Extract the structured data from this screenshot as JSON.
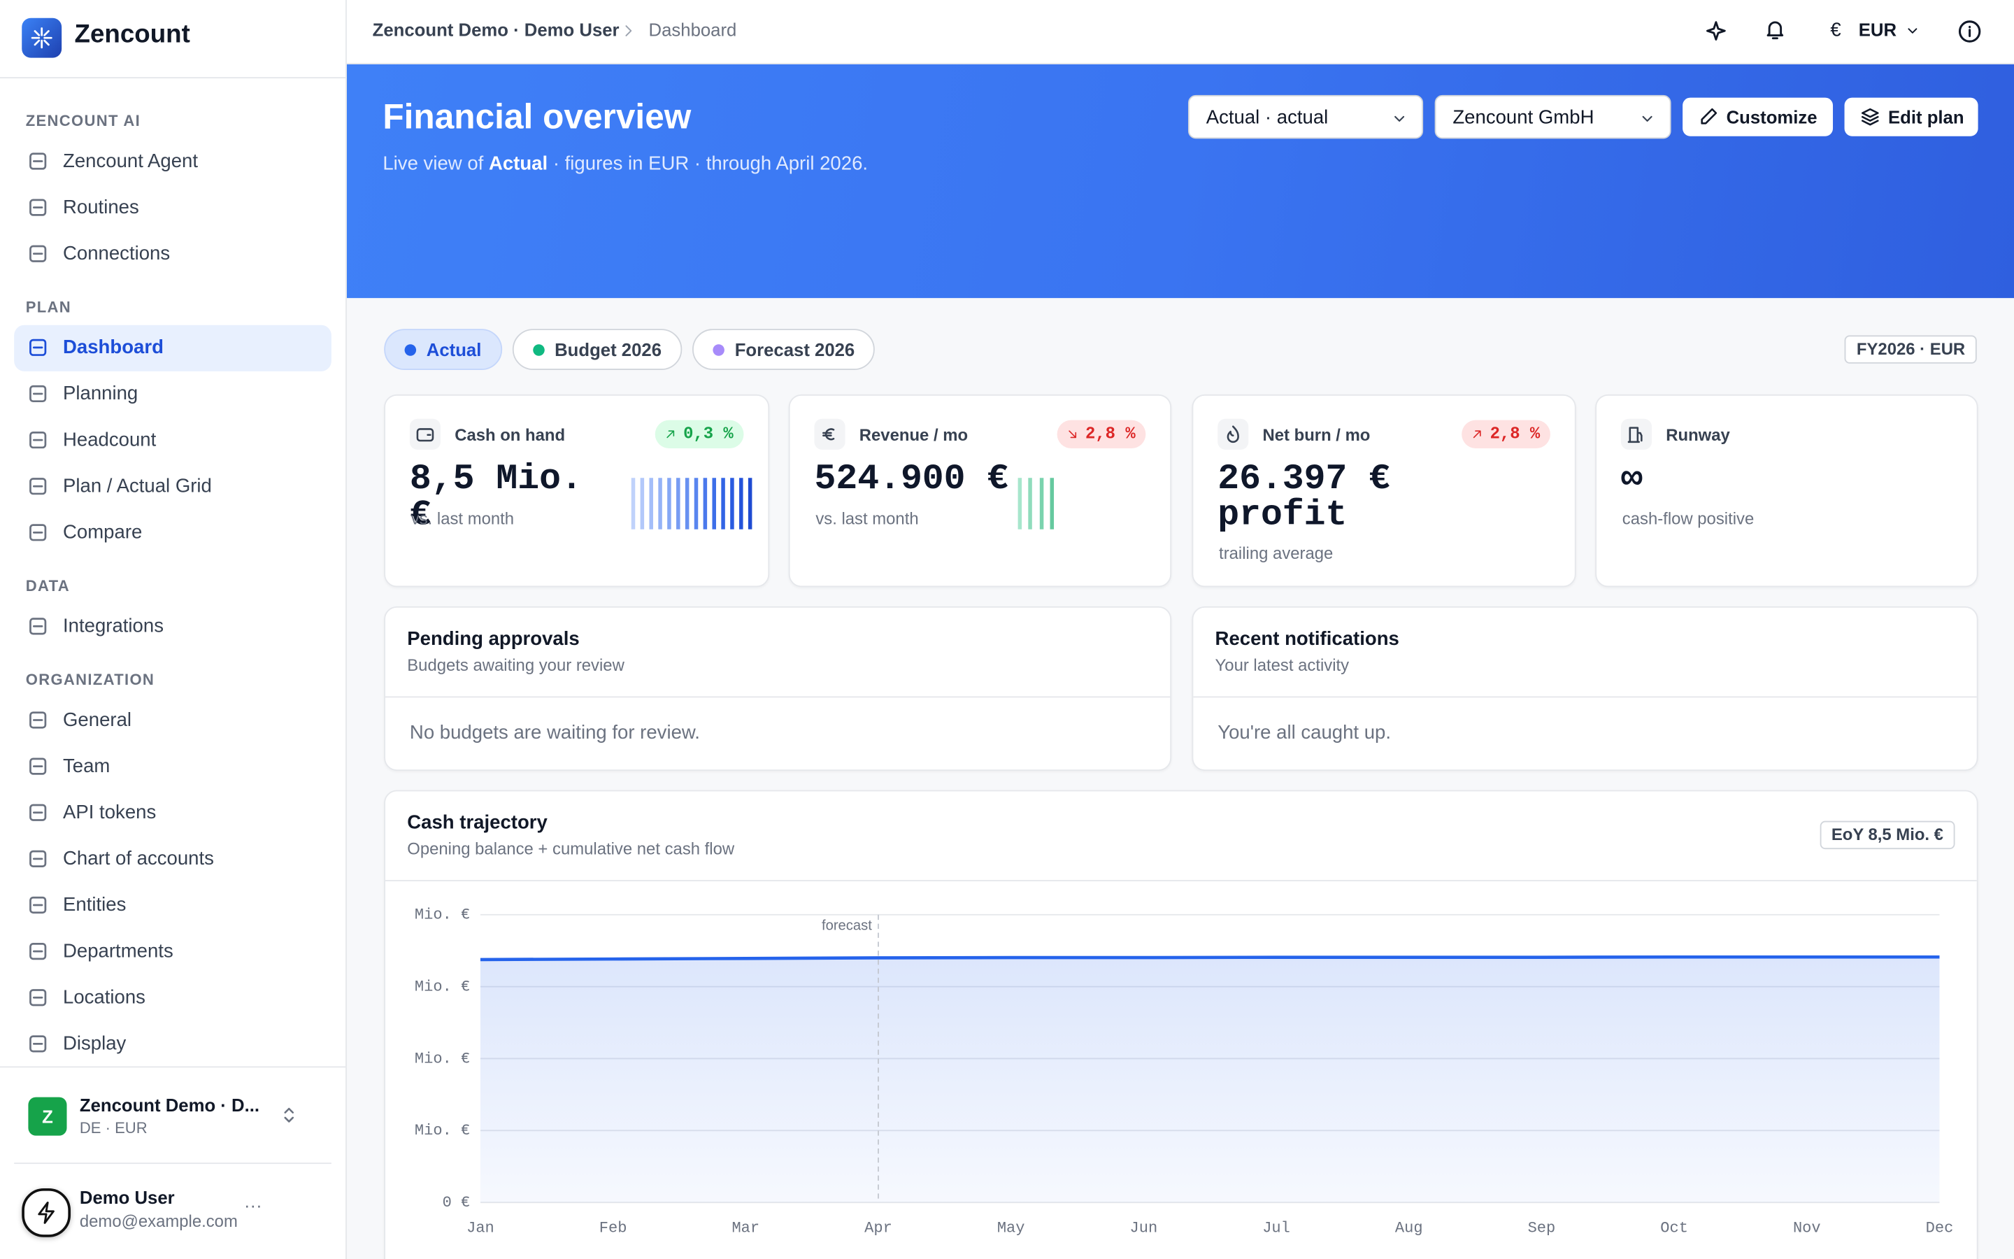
{
  "sidebar": {
    "brand": "Zencount",
    "active": "Dashboard",
    "sections": [
      {
        "label": "ZENCOUNT AI",
        "items": [
          "Zencount Agent",
          "Routines",
          "Connections"
        ]
      },
      {
        "label": "PLAN",
        "items": [
          "Dashboard",
          "Planning",
          "Headcount",
          "Plan / Actual Grid",
          "Compare"
        ]
      },
      {
        "label": "DATA",
        "items": [
          "Integrations"
        ]
      },
      {
        "label": "ORGANIZATION",
        "items": [
          "General",
          "Team",
          "API tokens",
          "Chart of accounts",
          "Entities",
          "Departments",
          "Locations",
          "Display"
        ]
      }
    ],
    "org": {
      "initial": "Z",
      "name": "Zencount Demo · D...",
      "meta": "DE · EUR"
    },
    "user": {
      "name": "Demo User",
      "email": "demo@example.com",
      "menu": "···"
    }
  },
  "topbar": {
    "breadcrumb": [
      "Zencount Demo · Demo User",
      "Dashboard"
    ],
    "currency_symbol": "€",
    "currency": "EUR"
  },
  "hero": {
    "title": "Financial overview",
    "subtitle": [
      "Live view of ",
      "Actual",
      " · figures in EUR · through April 2026."
    ],
    "scenario": "Actual · actual",
    "entity": "Zencount GmbH",
    "buttons": [
      "Customize",
      "Edit plan"
    ]
  },
  "tabs": {
    "active": "Actual",
    "items": [
      {
        "name": "Actual",
        "color": "#2563eb"
      },
      {
        "name": "Budget 2026",
        "color": "#10b981"
      },
      {
        "name": "Forecast 2026",
        "color": "#a78bfa"
      }
    ],
    "badge": "FY2026 · EUR"
  },
  "kpis": [
    {
      "label": "Cash on hand",
      "delta": "0,3 %",
      "trend": "up",
      "tone": "good",
      "value": "8,5 Mio. €",
      "note": "vs. last month"
    },
    {
      "label": "Revenue / mo",
      "delta": "2,8 %",
      "trend": "down",
      "tone": "bad",
      "value": "524.900 €",
      "note": "vs. last month"
    },
    {
      "label": "Net burn / mo",
      "delta": "2,8 %",
      "trend": "up",
      "tone": "bad",
      "value": "26.397 € profit",
      "note": "trailing average"
    },
    {
      "label": "Runway",
      "value": "∞",
      "note": "cash-flow positive"
    }
  ],
  "panels": [
    {
      "title": "Pending approvals",
      "subtitle": "Budgets awaiting your review",
      "empty": "No budgets are waiting for review."
    },
    {
      "title": "Recent notifications",
      "subtitle": "Your latest activity",
      "empty": "You're all caught up."
    }
  ],
  "chart_data": {
    "type": "area",
    "title": "Cash trajectory",
    "subtitle": "Opening balance + cumulative net cash flow",
    "badge": "EoY 8,5 Mio. €",
    "categories": [
      "Jan",
      "Feb",
      "Mar",
      "Apr",
      "May",
      "Jun",
      "Jul",
      "Aug",
      "Sep",
      "Oct",
      "Nov",
      "Dec"
    ],
    "values": [
      8.44,
      8.46,
      8.48,
      8.5,
      8.51,
      8.51,
      8.52,
      8.52,
      8.52,
      8.53,
      8.53,
      8.53
    ],
    "color": "#2563eb",
    "ylim": [
      0,
      10
    ],
    "yticks": [
      {
        "value": 0,
        "label": "0 €"
      },
      {
        "value": 2.5,
        "label": "Mio. €"
      },
      {
        "value": 5,
        "label": "Mio. €"
      },
      {
        "value": 7.5,
        "label": "Mio. €"
      },
      {
        "value": 10,
        "label": "Mio. €"
      }
    ],
    "grid": true,
    "annotation": {
      "text": "forecast",
      "x": "Apr"
    }
  }
}
